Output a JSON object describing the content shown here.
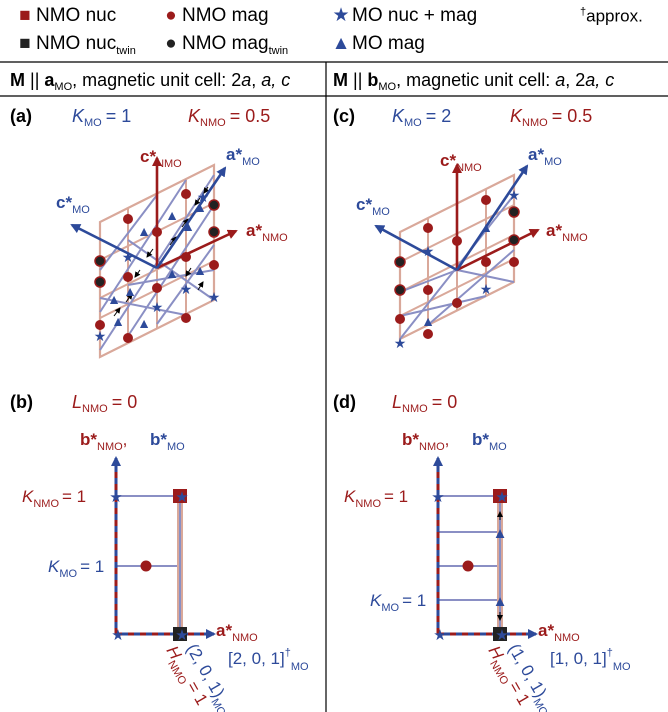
{
  "colors": {
    "nmo": "#9b1b1b",
    "mo": "#2d4a9a",
    "black": "#000000",
    "lattice_light": "#d9a89a",
    "lattice_blue": "#8a8fc4"
  },
  "legend": {
    "nmo_nuc": "NMO nuc",
    "nmo_mag": "NMO mag",
    "mo_nuc_mag": "MO nuc + mag",
    "approx_sup": "†",
    "approx": "approx.",
    "nmo_nuc_twin": "NMO nuc",
    "twin_sub": "twin",
    "nmo_mag_twin": "NMO mag",
    "mo_mag": "MO mag"
  },
  "columns": {
    "left": {
      "m": "M",
      "par": "||",
      "a": "a",
      "sub": "MO",
      "text": ", magnetic unit cell: ",
      "cell_1": "2",
      "cell_a1": "a",
      "cell_mid": ", ",
      "cell_a2": "a",
      "cell_c": ", c"
    },
    "right": {
      "m": "M",
      "par": "||",
      "a": "b",
      "sub": "MO",
      "text": ", magnetic unit cell: ",
      "cell_a1": "a",
      "cell_mid": ", 2",
      "cell_a2": "a",
      "cell_c": ", c"
    }
  },
  "panels": {
    "a": {
      "tag": "(a)",
      "k": "K",
      "ksub": "MO",
      "kval": "= 1",
      "k2": "K",
      "k2sub": "NMO",
      "k2val": "= 0.5"
    },
    "b": {
      "tag": "(b)",
      "l": "L",
      "lsub": "NMO",
      "lval": "= 0"
    },
    "c": {
      "tag": "(c)",
      "k": "K",
      "ksub": "MO",
      "kval": "= 2",
      "k2": "K",
      "k2sub": "NMO",
      "k2val": "= 0.5"
    },
    "d": {
      "tag": "(d)",
      "l": "L",
      "lsub": "NMO",
      "lval": "= 0"
    }
  },
  "axes": {
    "c_star": "c*",
    "a_star": "a*",
    "b_star": "b*",
    "nmo": "NMO",
    "mo": "MO",
    "comma": ",",
    "k_nmo": "K",
    "k_nmo_val": "= 1",
    "k_mo": "K",
    "k_mo_val": "= 1",
    "h_nmo": "H",
    "h_nmo_val": "= 1",
    "vec_b": "[2, 0, 1]",
    "vec_d": "[1, 0, 1]",
    "dag": "†",
    "diag_b": "(2, 0, 1)",
    "diag_d": "(1, 0, 1)"
  }
}
